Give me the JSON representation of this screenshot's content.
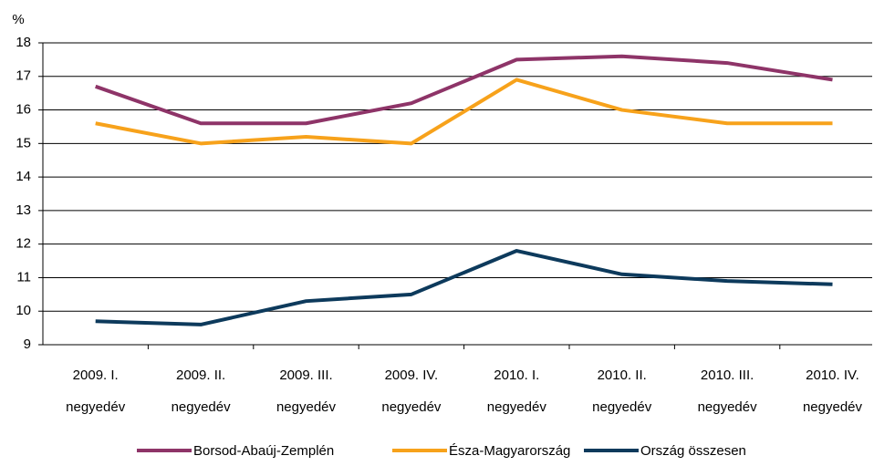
{
  "chart_data": {
    "type": "line",
    "y_label": "%",
    "categories": [
      [
        "2009. I.",
        "negyedév"
      ],
      [
        "2009. II.",
        "negyedév"
      ],
      [
        "2009. III.",
        "negyedév"
      ],
      [
        "2009. IV.",
        "negyedév"
      ],
      [
        "2010. I.",
        "negyedév"
      ],
      [
        "2010. II.",
        "negyedév"
      ],
      [
        "2010. III.",
        "negyedév"
      ],
      [
        "2010. IV.",
        "negyedév"
      ]
    ],
    "series": [
      {
        "name": "Borsod-Abaúj-Zemplén",
        "color": "#8e3468",
        "values": [
          16.7,
          15.6,
          15.6,
          16.2,
          17.5,
          17.6,
          17.4,
          16.9
        ]
      },
      {
        "name": "Észa-Magyarország",
        "color": "#f7a21b",
        "values": [
          15.6,
          15.0,
          15.2,
          15.0,
          16.9,
          16.0,
          15.6,
          15.6
        ]
      },
      {
        "name": "Ország összesen",
        "color": "#0d3a5c",
        "values": [
          9.7,
          9.6,
          10.3,
          10.5,
          11.8,
          11.1,
          10.9,
          10.8
        ]
      }
    ],
    "ylim": [
      9,
      18
    ],
    "yticks": [
      9,
      10,
      11,
      12,
      13,
      14,
      15,
      16,
      17,
      18
    ],
    "grid": true,
    "legend": "bottom"
  }
}
